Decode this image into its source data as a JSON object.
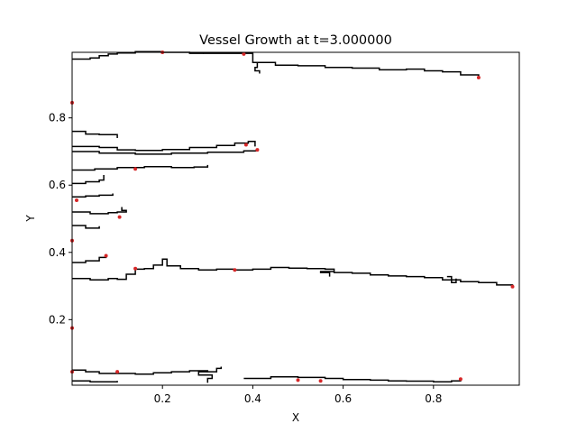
{
  "chart_data": {
    "type": "line",
    "title": "Vessel Growth at t=3.000000",
    "xlabel": "X",
    "ylabel": "Y",
    "xlim": [
      0.0,
      0.99
    ],
    "ylim": [
      0.005,
      0.995
    ],
    "xticks": [
      {
        "value": 0.2,
        "label": "0.2"
      },
      {
        "value": 0.4,
        "label": "0.4"
      },
      {
        "value": 0.6,
        "label": "0.6"
      },
      {
        "value": 0.8,
        "label": "0.8"
      }
    ],
    "yticks": [
      {
        "value": 0.2,
        "label": "0.2"
      },
      {
        "value": 0.4,
        "label": "0.4"
      },
      {
        "value": 0.6,
        "label": "0.6"
      },
      {
        "value": 0.8,
        "label": "0.8"
      }
    ],
    "grid": false,
    "line_color": "#000000",
    "tip_color": "#d62728",
    "series": [
      {
        "points": [
          [
            0.0,
            0.975
          ],
          [
            0.04,
            0.978
          ],
          [
            0.06,
            0.985
          ],
          [
            0.08,
            0.99
          ],
          [
            0.1,
            0.993
          ],
          [
            0.14,
            0.997
          ],
          [
            0.2,
            0.995
          ],
          [
            0.26,
            0.992
          ],
          [
            0.29,
            0.994
          ]
        ]
      },
      {
        "points": [
          [
            0.29,
            0.992
          ],
          [
            0.4,
            0.965
          ],
          [
            0.45,
            0.957
          ],
          [
            0.5,
            0.955
          ],
          [
            0.56,
            0.95
          ],
          [
            0.62,
            0.948
          ],
          [
            0.68,
            0.943
          ],
          [
            0.74,
            0.945
          ],
          [
            0.78,
            0.94
          ],
          [
            0.82,
            0.937
          ],
          [
            0.86,
            0.928
          ],
          [
            0.9,
            0.92
          ]
        ]
      },
      {
        "points": [
          [
            0.4,
            0.965
          ],
          [
            0.41,
            0.95
          ],
          [
            0.405,
            0.94
          ],
          [
            0.415,
            0.932
          ]
        ]
      },
      {
        "points": [
          [
            0.0,
            0.76
          ],
          [
            0.03,
            0.752
          ],
          [
            0.06,
            0.75
          ],
          [
            0.1,
            0.74
          ]
        ]
      },
      {
        "points": [
          [
            0.0,
            0.715
          ],
          [
            0.06,
            0.712
          ],
          [
            0.1,
            0.705
          ],
          [
            0.14,
            0.703
          ],
          [
            0.2,
            0.706
          ],
          [
            0.26,
            0.712
          ],
          [
            0.32,
            0.718
          ],
          [
            0.36,
            0.725
          ],
          [
            0.39,
            0.73
          ],
          [
            0.405,
            0.715
          ]
        ]
      },
      {
        "points": [
          [
            0.0,
            0.7
          ],
          [
            0.06,
            0.695
          ],
          [
            0.14,
            0.692
          ],
          [
            0.22,
            0.695
          ],
          [
            0.3,
            0.698
          ],
          [
            0.38,
            0.702
          ],
          [
            0.41,
            0.705
          ]
        ]
      },
      {
        "points": [
          [
            0.0,
            0.645
          ],
          [
            0.05,
            0.648
          ],
          [
            0.1,
            0.652
          ],
          [
            0.16,
            0.655
          ],
          [
            0.22,
            0.652
          ],
          [
            0.27,
            0.654
          ],
          [
            0.3,
            0.66
          ]
        ]
      },
      {
        "points": [
          [
            0.0,
            0.605
          ],
          [
            0.03,
            0.61
          ],
          [
            0.06,
            0.615
          ],
          [
            0.07,
            0.63
          ]
        ]
      },
      {
        "points": [
          [
            0.0,
            0.565
          ],
          [
            0.03,
            0.568
          ],
          [
            0.06,
            0.57
          ],
          [
            0.09,
            0.575
          ]
        ]
      },
      {
        "points": [
          [
            0.0,
            0.52
          ],
          [
            0.04,
            0.515
          ],
          [
            0.08,
            0.518
          ],
          [
            0.1,
            0.52
          ],
          [
            0.12,
            0.525
          ],
          [
            0.11,
            0.535
          ]
        ]
      },
      {
        "points": [
          [
            0.0,
            0.48
          ],
          [
            0.03,
            0.472
          ],
          [
            0.06,
            0.478
          ]
        ]
      },
      {
        "points": [
          [
            0.0,
            0.37
          ],
          [
            0.03,
            0.375
          ],
          [
            0.06,
            0.385
          ],
          [
            0.075,
            0.39
          ]
        ]
      },
      {
        "points": [
          [
            0.0,
            0.322
          ],
          [
            0.04,
            0.318
          ],
          [
            0.08,
            0.322
          ],
          [
            0.1,
            0.32
          ],
          [
            0.12,
            0.335
          ],
          [
            0.14,
            0.35
          ],
          [
            0.16,
            0.352
          ],
          [
            0.18,
            0.362
          ],
          [
            0.2,
            0.38
          ],
          [
            0.21,
            0.36
          ],
          [
            0.24,
            0.352
          ],
          [
            0.28,
            0.348
          ],
          [
            0.32,
            0.35
          ],
          [
            0.36,
            0.348
          ],
          [
            0.4,
            0.35
          ],
          [
            0.44,
            0.355
          ],
          [
            0.48,
            0.353
          ],
          [
            0.52,
            0.352
          ],
          [
            0.56,
            0.35
          ],
          [
            0.58,
            0.34
          ],
          [
            0.62,
            0.338
          ],
          [
            0.66,
            0.333
          ],
          [
            0.7,
            0.33
          ],
          [
            0.74,
            0.328
          ],
          [
            0.78,
            0.325
          ],
          [
            0.82,
            0.318
          ],
          [
            0.86,
            0.313
          ],
          [
            0.9,
            0.31
          ],
          [
            0.94,
            0.303
          ],
          [
            0.975,
            0.298
          ]
        ]
      },
      {
        "points": [
          [
            0.58,
            0.343
          ],
          [
            0.55,
            0.34
          ],
          [
            0.57,
            0.328
          ]
        ]
      },
      {
        "points": [
          [
            0.83,
            0.328
          ],
          [
            0.84,
            0.31
          ],
          [
            0.85,
            0.322
          ]
        ]
      },
      {
        "points": [
          [
            0.0,
            0.05
          ],
          [
            0.03,
            0.045
          ],
          [
            0.06,
            0.04
          ],
          [
            0.1,
            0.04
          ],
          [
            0.14,
            0.038
          ],
          [
            0.18,
            0.042
          ],
          [
            0.22,
            0.045
          ],
          [
            0.26,
            0.048
          ],
          [
            0.3,
            0.045
          ],
          [
            0.32,
            0.055
          ],
          [
            0.33,
            0.06
          ]
        ]
      },
      {
        "points": [
          [
            0.3,
            0.045
          ],
          [
            0.28,
            0.035
          ],
          [
            0.31,
            0.025
          ],
          [
            0.3,
            0.012
          ]
        ]
      },
      {
        "points": [
          [
            0.38,
            0.025
          ],
          [
            0.44,
            0.03
          ],
          [
            0.5,
            0.028
          ],
          [
            0.56,
            0.025
          ],
          [
            0.6,
            0.022
          ],
          [
            0.66,
            0.02
          ],
          [
            0.7,
            0.018
          ],
          [
            0.74,
            0.017
          ],
          [
            0.8,
            0.015
          ],
          [
            0.84,
            0.018
          ],
          [
            0.86,
            0.023
          ]
        ]
      },
      {
        "points": [
          [
            0.0,
            0.018
          ],
          [
            0.04,
            0.015
          ],
          [
            0.08,
            0.015
          ],
          [
            0.1,
            0.018
          ]
        ]
      }
    ],
    "tips": [
      {
        "x": 0.9,
        "y": 0.92
      },
      {
        "x": 0.975,
        "y": 0.298
      },
      {
        "x": 0.36,
        "y": 0.348
      },
      {
        "x": 0.14,
        "y": 0.352
      },
      {
        "x": 0.075,
        "y": 0.39
      },
      {
        "x": 0.105,
        "y": 0.505
      },
      {
        "x": 0.14,
        "y": 0.648
      },
      {
        "x": 0.41,
        "y": 0.705
      },
      {
        "x": 0.385,
        "y": 0.72
      },
      {
        "x": 0.0,
        "y": 0.845
      },
      {
        "x": 0.0,
        "y": 0.435
      },
      {
        "x": 0.0,
        "y": 0.175
      },
      {
        "x": 0.0,
        "y": 0.045
      },
      {
        "x": 0.1,
        "y": 0.045
      },
      {
        "x": 0.55,
        "y": 0.018
      },
      {
        "x": 0.86,
        "y": 0.023
      },
      {
        "x": 0.38,
        "y": 0.99
      },
      {
        "x": 0.2,
        "y": 0.995
      },
      {
        "x": 0.01,
        "y": 0.555
      },
      {
        "x": 0.5,
        "y": 0.02
      }
    ]
  }
}
